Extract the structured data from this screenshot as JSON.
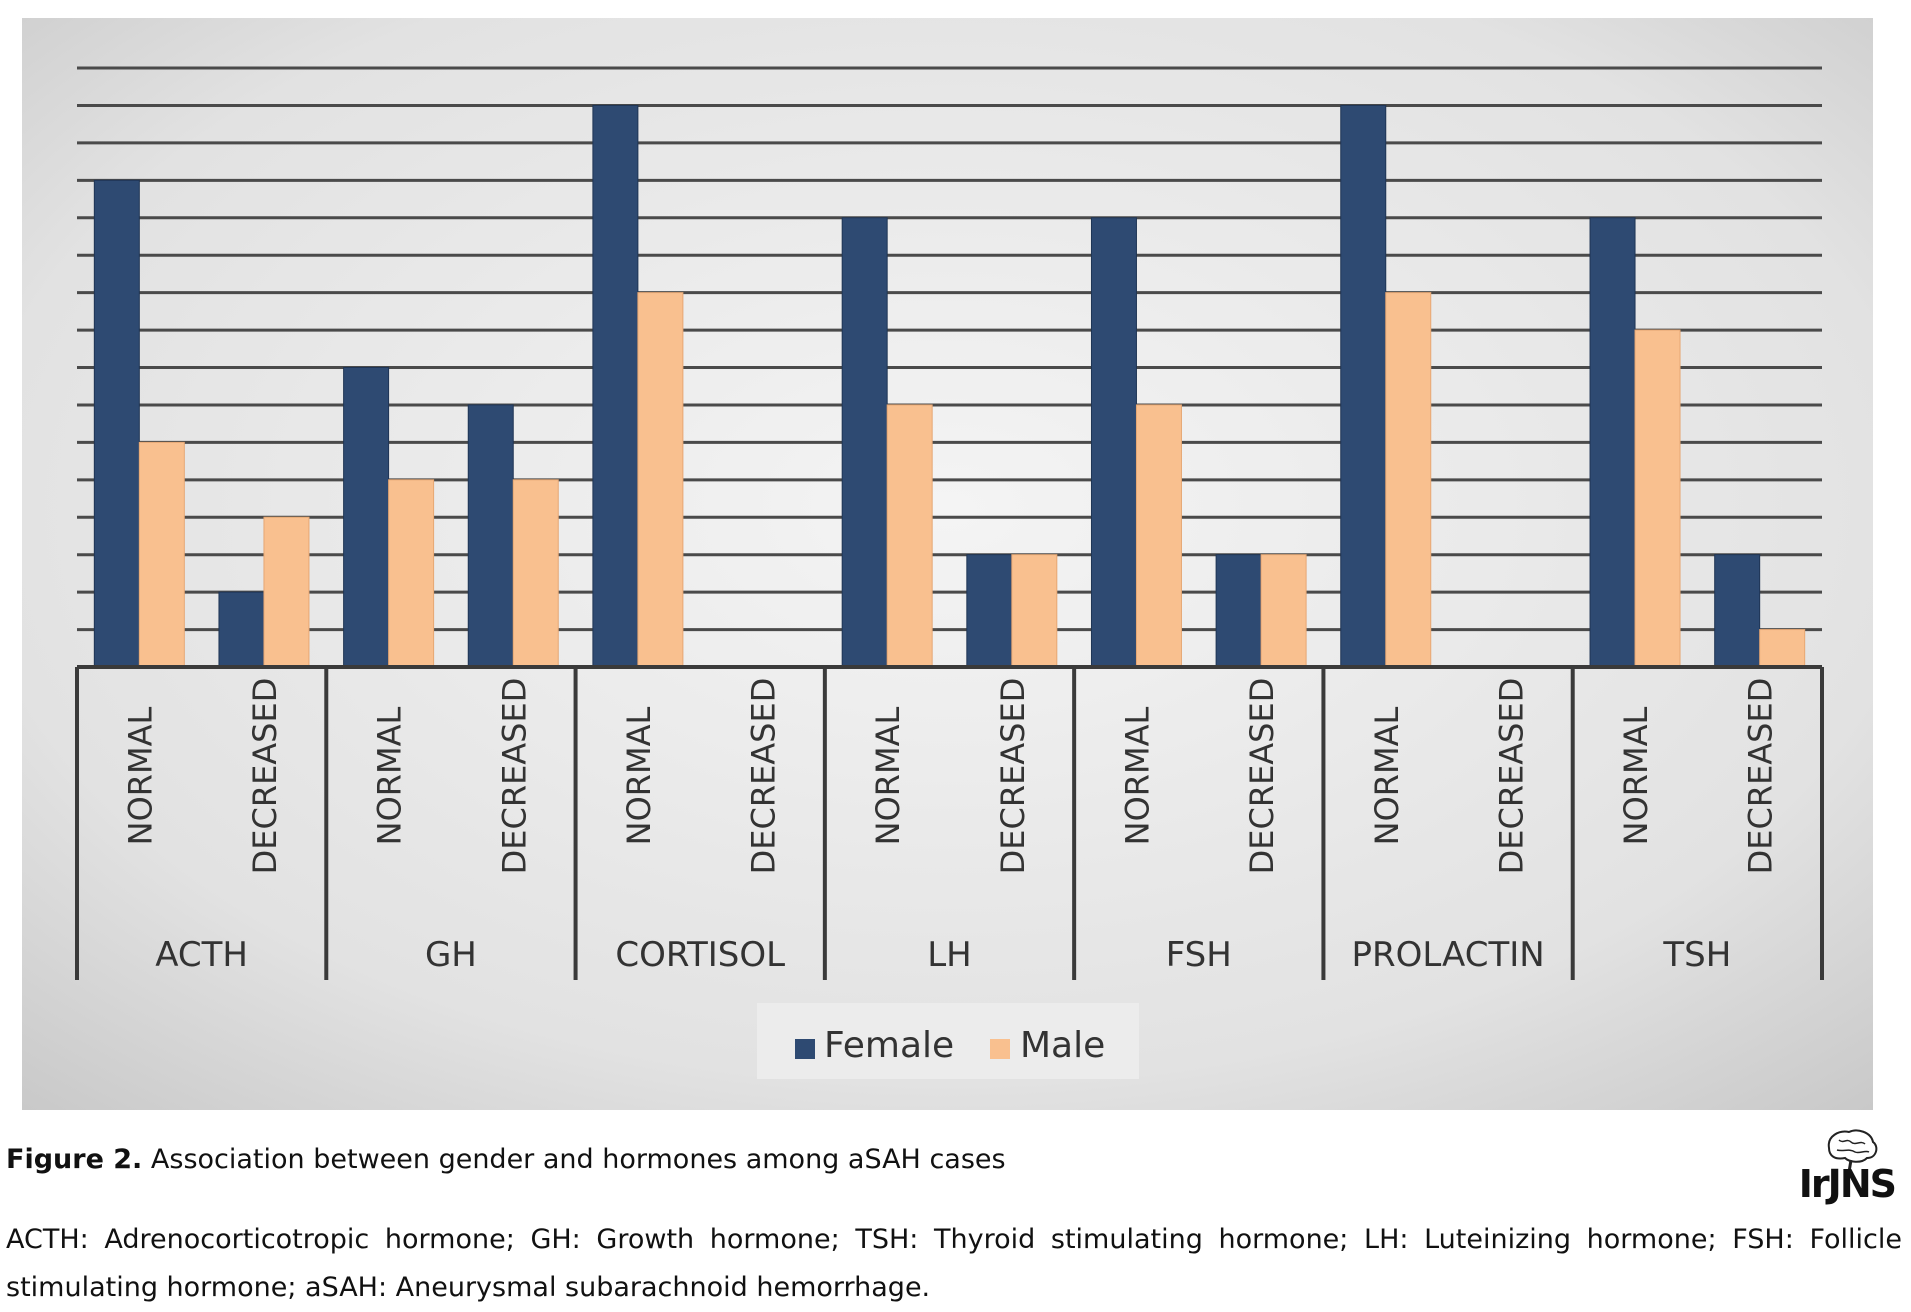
{
  "chart_data": {
    "type": "bar",
    "groups": [
      "ACTH",
      "GH",
      "CORTISOL",
      "LH",
      "FSH",
      "PROLACTIN",
      "TSH"
    ],
    "subcategories": [
      "NORMAL",
      "DECREASED"
    ],
    "series": [
      {
        "name": "Female",
        "color": "#2e4a72",
        "values": [
          13,
          2,
          8,
          7,
          15,
          0,
          12,
          3,
          12,
          3,
          15,
          0,
          12,
          3
        ]
      },
      {
        "name": "Male",
        "color": "#f9c08f",
        "values": [
          6,
          4,
          5,
          5,
          10,
          0,
          7,
          3,
          7,
          3,
          10,
          0,
          9,
          1
        ]
      }
    ],
    "ylim": [
      0,
      16
    ],
    "grid": true,
    "legend": "bottom",
    "title": "",
    "xlabel": "",
    "ylabel": ""
  },
  "legend": {
    "female_label": "Female",
    "male_label": "Male"
  },
  "caption": {
    "figure_label": "Figure 2.",
    "text": "Association between gender and hormones among aSAH cases"
  },
  "footnote": "ACTH: Adrenocorticotropic hormone; GH: Growth hormone; TSH: Thyroid stimulating hormone; LH: Luteinizing hormone; FSH: Follicle stimulating hormone; aSAH: Aneurysmal subarachnoid hemorrhage.",
  "logo": {
    "text": "IrJNS"
  }
}
